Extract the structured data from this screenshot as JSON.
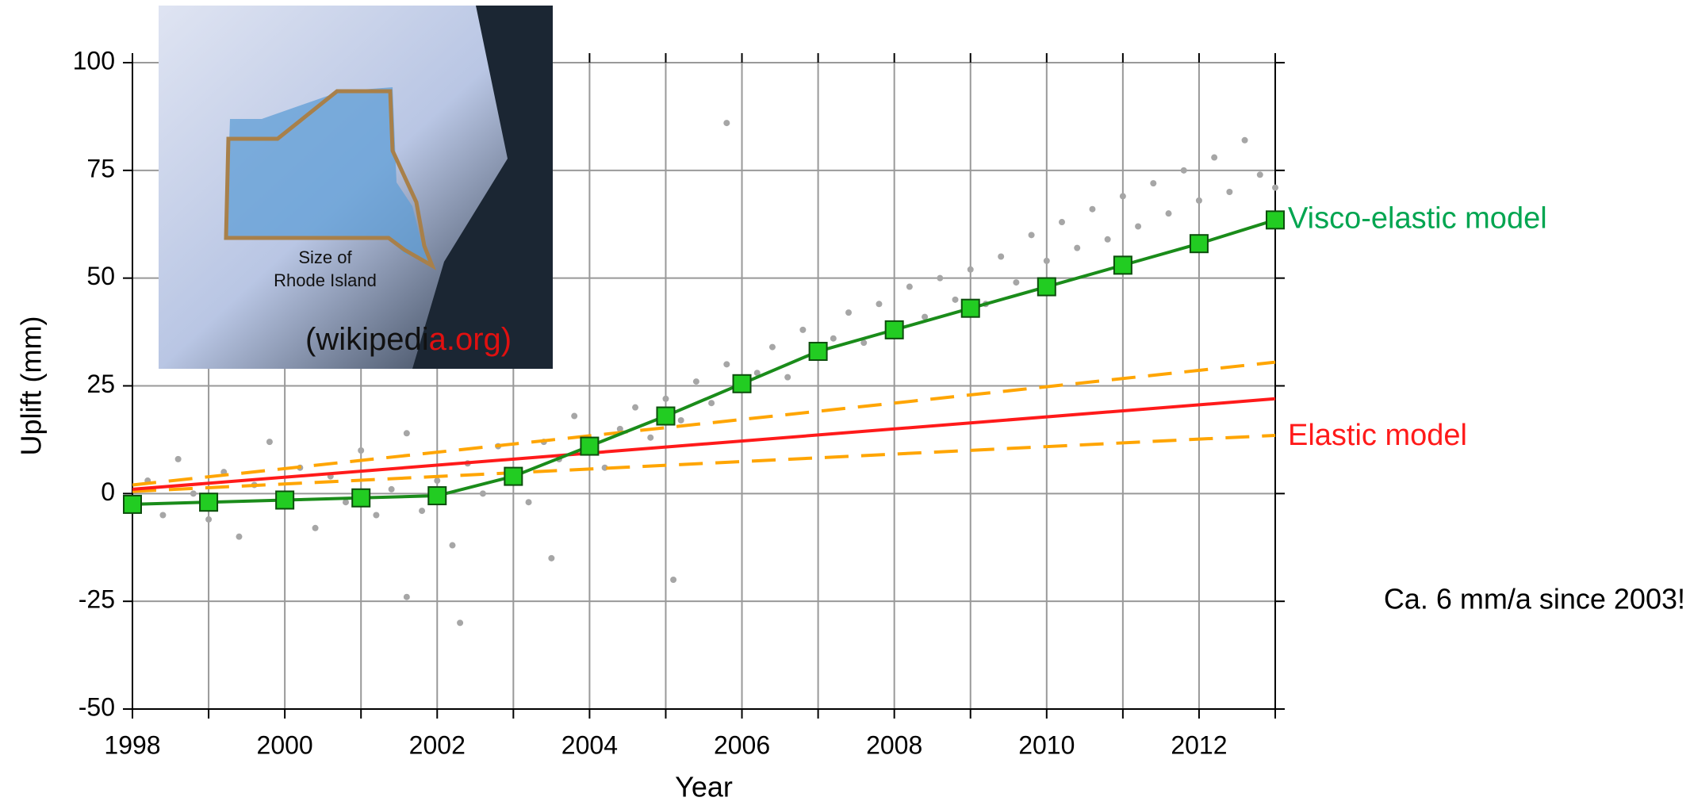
{
  "chart_data": {
    "type": "line",
    "xlabel": "Year",
    "ylabel": "Uplift (mm)",
    "xlim": [
      1998,
      2013
    ],
    "ylim": [
      -50,
      100
    ],
    "xticks": [
      1998,
      2000,
      2002,
      2004,
      2006,
      2008,
      2010,
      2012
    ],
    "xminor_ticks": [
      1999,
      2001,
      2003,
      2005,
      2007,
      2009,
      2011,
      2013
    ],
    "yticks": [
      -50,
      -25,
      0,
      25,
      50,
      75,
      100
    ],
    "grid": true,
    "series": [
      {
        "kind": "scatter",
        "color": "#a6a6a6",
        "x": [
          1998.2,
          1998.4,
          1998.6,
          1998.8,
          1999.0,
          1999.2,
          1999.4,
          1999.6,
          1999.8,
          2000.0,
          2000.2,
          2000.4,
          2000.6,
          2000.8,
          2001.0,
          2001.2,
          2001.4,
          2001.6,
          2001.8,
          2002.0,
          2002.2,
          2002.4,
          2002.6,
          2002.8,
          2003.0,
          2003.2,
          2003.4,
          2003.6,
          2003.8,
          2004.0,
          2004.2,
          2004.4,
          2004.6,
          2004.8,
          2005.0,
          2005.2,
          2005.4,
          2005.6,
          2005.8,
          2006.0,
          2006.2,
          2006.4,
          2006.6,
          2006.8,
          2007.0,
          2007.2,
          2007.4,
          2007.6,
          2007.8,
          2008.0,
          2008.2,
          2008.4,
          2008.6,
          2008.8,
          2009.0,
          2009.2,
          2009.4,
          2009.6,
          2009.8,
          2010.0,
          2010.2,
          2010.4,
          2010.6,
          2010.8,
          2011.0,
          2011.2,
          2011.4,
          2011.6,
          2011.8,
          2012.0,
          2012.2,
          2012.4,
          2012.6,
          2012.8,
          2013.0,
          2005.8,
          2002.3,
          2005.1,
          2003.5,
          2001.6
        ],
        "values": [
          3,
          -5,
          8,
          0,
          -6,
          5,
          -10,
          2,
          12,
          -3,
          6,
          -8,
          4,
          -2,
          10,
          -5,
          1,
          14,
          -4,
          3,
          -12,
          7,
          0,
          11,
          5,
          -2,
          12,
          8,
          18,
          10,
          6,
          15,
          20,
          13,
          22,
          17,
          26,
          21,
          30,
          24,
          28,
          34,
          27,
          38,
          32,
          36,
          42,
          35,
          44,
          39,
          48,
          41,
          50,
          45,
          52,
          44,
          55,
          49,
          60,
          54,
          63,
          57,
          66,
          59,
          69,
          62,
          72,
          65,
          75,
          68,
          78,
          70,
          82,
          74,
          71,
          86,
          -30,
          -20,
          -15,
          -24
        ]
      },
      {
        "kind": "line",
        "dash": true,
        "color": "#ffa500",
        "x": [
          1998,
          2013
        ],
        "values": [
          2,
          30.5
        ]
      },
      {
        "kind": "line",
        "dash": true,
        "color": "#ffa500",
        "x": [
          1998,
          2013
        ],
        "values": [
          0.5,
          13.5
        ]
      },
      {
        "kind": "line",
        "name": "Elastic model",
        "color": "#ff1a1a",
        "x": [
          1998,
          2013
        ],
        "values": [
          1,
          22
        ]
      },
      {
        "kind": "line",
        "marker": "square",
        "name": "Visco-elastic model",
        "color": "#1a8c1a",
        "marker_color": "#22cc22",
        "x": [
          1998,
          1999,
          2000,
          2001,
          2002,
          2003,
          2004,
          2005,
          2006,
          2007,
          2008,
          2009,
          2010,
          2011,
          2012,
          2013
        ],
        "values": [
          -2.5,
          -2,
          -1.5,
          -1,
          -0.5,
          4,
          11,
          18,
          25.5,
          33,
          38,
          43,
          48,
          53,
          58,
          63.5
        ]
      }
    ],
    "annotation": "Ca. 6 mm/a since 2003!"
  },
  "inset": {
    "label": [
      "Size of",
      "Rhode Island"
    ],
    "credit": [
      "(wikipedi",
      "a.org)"
    ]
  }
}
